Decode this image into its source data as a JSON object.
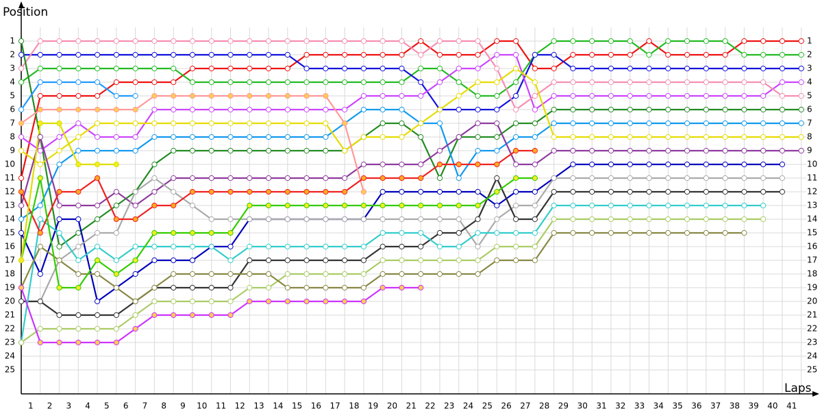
{
  "chart_data": {
    "type": "line",
    "title": "Position",
    "x_label": "Laps",
    "x": [
      0,
      1,
      2,
      3,
      4,
      5,
      6,
      7,
      8,
      9,
      10,
      11,
      12,
      13,
      14,
      15,
      16,
      17,
      18,
      19,
      20,
      21,
      22,
      23,
      24,
      25,
      26,
      27,
      28,
      29,
      30,
      31,
      32,
      33,
      34,
      35,
      36,
      37,
      38,
      39,
      40,
      41
    ],
    "xlim": [
      0,
      41.55
    ],
    "xticks": [
      1,
      2,
      3,
      4,
      5,
      6,
      7,
      8,
      9,
      10,
      11,
      12,
      13,
      14,
      15,
      16,
      17,
      18,
      19,
      20,
      21,
      22,
      23,
      24,
      25,
      26,
      27,
      28,
      29,
      30,
      31,
      32,
      33,
      34,
      35,
      36,
      37,
      38,
      39,
      40,
      41
    ],
    "ylim": [
      -1.5,
      26.75
    ],
    "y_reversed": true,
    "yticks": [
      1,
      2,
      3,
      4,
      5,
      6,
      7,
      8,
      9,
      10,
      11,
      12,
      13,
      14,
      15,
      16,
      17,
      18,
      19,
      20,
      21,
      22,
      23,
      24,
      25
    ],
    "grid": true,
    "series": [
      {
        "color": "#ee1111",
        "marker_fill": "#ffffff",
        "values": [
          11,
          5,
          5,
          5,
          5,
          4,
          4,
          4,
          4,
          3,
          3,
          3,
          3,
          3,
          3,
          2,
          2,
          2,
          2,
          2,
          2,
          1,
          2,
          2,
          2,
          1,
          1,
          3,
          3,
          2,
          2,
          2,
          2,
          1,
          2,
          2,
          2,
          2,
          1,
          1,
          1,
          1
        ]
      },
      {
        "color": "#22bb22",
        "marker_fill": "#ffffff",
        "values": [
          4,
          3,
          3,
          3,
          3,
          3,
          3,
          3,
          3,
          4,
          4,
          4,
          4,
          4,
          4,
          4,
          4,
          4,
          4,
          4,
          4,
          3,
          3,
          4,
          5,
          5,
          4,
          2,
          1,
          1,
          1,
          1,
          1,
          2,
          1,
          1,
          1,
          1,
          2,
          2,
          2,
          2
        ]
      },
      {
        "color": "#1111dd",
        "marker_fill": "#ffffff",
        "values": [
          2,
          2,
          2,
          2,
          2,
          2,
          2,
          2,
          2,
          2,
          2,
          2,
          2,
          2,
          2,
          3,
          3,
          3,
          3,
          3,
          3,
          4,
          6,
          6,
          6,
          6,
          5,
          2,
          2,
          3,
          3,
          3,
          3,
          3,
          3,
          3,
          3,
          3,
          3,
          3,
          3,
          3
        ]
      },
      {
        "color": "#cc44ff",
        "marker_fill": "#ffffff",
        "values": [
          8,
          9,
          8,
          7,
          8,
          8,
          8,
          6,
          6,
          6,
          6,
          6,
          6,
          6,
          6,
          6,
          6,
          6,
          5,
          5,
          5,
          5,
          4,
          3,
          3,
          2,
          2,
          6,
          5,
          5,
          5,
          5,
          5,
          5,
          5,
          5,
          5,
          5,
          5,
          5,
          4,
          4
        ]
      },
      {
        "color": "#f48fb1",
        "marker_fill": "#ffffff",
        "values": [
          3,
          1,
          1,
          1,
          1,
          1,
          1,
          1,
          1,
          1,
          1,
          1,
          1,
          1,
          1,
          1,
          1,
          1,
          1,
          1,
          1,
          2,
          1,
          1,
          1,
          3,
          6,
          5,
          4,
          4,
          4,
          4,
          4,
          4,
          4,
          4,
          4,
          4,
          4,
          4,
          5,
          5
        ]
      },
      {
        "color": "#228b22",
        "marker_fill": "#ffffff",
        "values": [
          1,
          8,
          16,
          15,
          14,
          13,
          12,
          10,
          9,
          9,
          9,
          9,
          9,
          9,
          9,
          9,
          9,
          9,
          8,
          7,
          7,
          8,
          11,
          8,
          8,
          8,
          7,
          7,
          6,
          6,
          6,
          6,
          6,
          6,
          6,
          6,
          6,
          6,
          6,
          6,
          6,
          6
        ]
      },
      {
        "color": "#1199ee",
        "marker_fill": "#ffffff",
        "values": [
          14,
          13,
          10,
          9,
          9,
          9,
          9,
          8,
          8,
          8,
          8,
          8,
          8,
          8,
          8,
          8,
          8,
          7,
          6,
          6,
          6,
          7,
          7,
          11,
          9,
          9,
          8,
          8,
          7,
          7,
          7,
          7,
          7,
          7,
          7,
          7,
          7,
          7,
          7,
          7,
          7,
          7
        ]
      },
      {
        "color": "#e6dc00",
        "marker_fill": "#ffffff",
        "values": [
          9,
          10,
          9,
          8,
          7,
          7,
          7,
          7,
          7,
          7,
          7,
          7,
          7,
          7,
          7,
          7,
          7,
          9,
          8,
          8,
          8,
          7,
          6,
          5,
          4,
          4,
          3,
          4,
          8,
          8,
          8,
          8,
          8,
          8,
          8,
          8,
          8,
          8,
          8,
          8,
          8,
          8
        ]
      },
      {
        "color": "#8e3a9e",
        "marker_fill": "#ffffff",
        "values": [
          13,
          8,
          13,
          13,
          13,
          12,
          13,
          12,
          11,
          11,
          11,
          11,
          11,
          11,
          11,
          11,
          11,
          11,
          10,
          10,
          10,
          10,
          9,
          8,
          7,
          7,
          10,
          10,
          9,
          9,
          9,
          9,
          9,
          9,
          9,
          9,
          9,
          9,
          9,
          9,
          9,
          9
        ]
      },
      {
        "color": "#0000bb",
        "marker_fill": "#ffffff",
        "values": [
          15,
          18,
          14,
          14,
          20,
          19,
          18,
          17,
          17,
          17,
          16,
          16,
          14,
          14,
          14,
          14,
          14,
          14,
          14,
          12,
          12,
          12,
          12,
          12,
          12,
          13,
          12,
          12,
          11,
          10,
          10,
          10,
          10,
          10,
          10,
          10,
          10,
          10,
          10,
          10,
          10,
          null
        ]
      },
      {
        "color": "#aaaaaa",
        "marker_fill": "#ffffff",
        "values": [
          20,
          20,
          17,
          16,
          15,
          15,
          12,
          11,
          12,
          13,
          14,
          14,
          14,
          14,
          14,
          14,
          14,
          14,
          14,
          14,
          14,
          14,
          14,
          14,
          16,
          14,
          13,
          13,
          11,
          11,
          11,
          11,
          11,
          11,
          11,
          11,
          11,
          11,
          11,
          11,
          11,
          null
        ]
      },
      {
        "color": "#333333",
        "marker_fill": "#ffffff",
        "values": [
          20,
          20,
          21,
          21,
          21,
          21,
          20,
          19,
          19,
          19,
          19,
          19,
          17,
          17,
          17,
          17,
          17,
          17,
          17,
          16,
          16,
          16,
          15,
          15,
          14,
          11,
          14,
          14,
          12,
          12,
          12,
          12,
          12,
          12,
          12,
          12,
          12,
          12,
          12,
          12,
          12,
          null
        ]
      },
      {
        "color": "#33cccc",
        "marker_fill": "#ffffff",
        "values": [
          23,
          14,
          15,
          17,
          16,
          17,
          16,
          16,
          16,
          16,
          16,
          17,
          16,
          16,
          16,
          16,
          16,
          16,
          16,
          15,
          15,
          15,
          16,
          16,
          15,
          15,
          15,
          15,
          13,
          13,
          13,
          13,
          13,
          13,
          13,
          13,
          13,
          13,
          13,
          13,
          null,
          null
        ]
      },
      {
        "color": "#aacc66",
        "marker_fill": "#ffffff",
        "values": [
          23,
          22,
          22,
          22,
          22,
          22,
          21,
          20,
          20,
          20,
          20,
          20,
          19,
          19,
          18,
          18,
          18,
          18,
          18,
          17,
          17,
          17,
          17,
          17,
          17,
          16,
          16,
          16,
          14,
          14,
          14,
          14,
          14,
          14,
          14,
          14,
          14,
          14,
          14,
          14,
          null,
          null
        ]
      },
      {
        "color": "#888844",
        "marker_fill": "#ffffff",
        "values": [
          19,
          16,
          17,
          18,
          18,
          19,
          20,
          19,
          18,
          18,
          18,
          18,
          18,
          18,
          19,
          19,
          19,
          19,
          19,
          18,
          18,
          18,
          18,
          18,
          18,
          17,
          17,
          17,
          15,
          15,
          15,
          15,
          15,
          15,
          15,
          15,
          15,
          15,
          15,
          null,
          null,
          null
        ]
      },
      {
        "color": "#ff9999",
        "marker_fill": "#ffcc55",
        "values": [
          7,
          6,
          6,
          6,
          6,
          6,
          6,
          5,
          5,
          5,
          5,
          5,
          5,
          5,
          5,
          5,
          5,
          7,
          12,
          null,
          null,
          null,
          null,
          null,
          null,
          null,
          null,
          null,
          null,
          null,
          null,
          null,
          null,
          null,
          null,
          null,
          null,
          null,
          null,
          null,
          null,
          null
        ]
      },
      {
        "color": "#ee2222",
        "marker_fill": "#ffaa22",
        "values": [
          12,
          15,
          12,
          12,
          11,
          14,
          14,
          13,
          13,
          12,
          12,
          12,
          12,
          12,
          12,
          12,
          12,
          12,
          11,
          11,
          11,
          11,
          10,
          10,
          10,
          10,
          9,
          9,
          null,
          null,
          null,
          null,
          null,
          null,
          null,
          null,
          null,
          null,
          null,
          null,
          null,
          null
        ]
      },
      {
        "color": "#33cc00",
        "marker_fill": "#eeee22",
        "values": [
          17,
          11,
          19,
          19,
          17,
          18,
          17,
          15,
          15,
          15,
          15,
          15,
          13,
          13,
          13,
          13,
          13,
          13,
          13,
          13,
          13,
          13,
          13,
          13,
          13,
          12,
          11,
          11,
          null,
          null,
          null,
          null,
          null,
          null,
          null,
          null,
          null,
          null,
          null,
          null,
          null,
          null
        ]
      },
      {
        "color": "#2299ff",
        "marker_fill": "#ffffff",
        "values": [
          6,
          4,
          4,
          4,
          4,
          5,
          5,
          null,
          null,
          null,
          null,
          null,
          null,
          null,
          null,
          null,
          null,
          null,
          null,
          null,
          null,
          null,
          null,
          null,
          null,
          null,
          null,
          null,
          null,
          null,
          null,
          null,
          null,
          null,
          null,
          null,
          null,
          null,
          null,
          null,
          null,
          null
        ]
      },
      {
        "color": "#dddd00",
        "marker_fill": "#eeee22",
        "values": [
          17,
          7,
          7,
          10,
          10,
          10,
          null,
          null,
          null,
          null,
          null,
          null,
          null,
          null,
          null,
          null,
          null,
          null,
          null,
          null,
          null,
          null,
          null,
          null,
          null,
          null,
          null,
          null,
          null,
          null,
          null,
          null,
          null,
          null,
          null,
          null,
          null,
          null,
          null,
          null,
          null,
          null
        ]
      },
      {
        "color": "#cc33ff",
        "marker_fill": "#ffcc55",
        "values": [
          19,
          23,
          23,
          23,
          23,
          23,
          22,
          21,
          21,
          21,
          21,
          21,
          20,
          20,
          20,
          20,
          20,
          20,
          20,
          19,
          19,
          19,
          null,
          null,
          null,
          null,
          null,
          null,
          null,
          null,
          null,
          null,
          null,
          null,
          null,
          null,
          null,
          null,
          null,
          null,
          null,
          null
        ]
      }
    ]
  }
}
